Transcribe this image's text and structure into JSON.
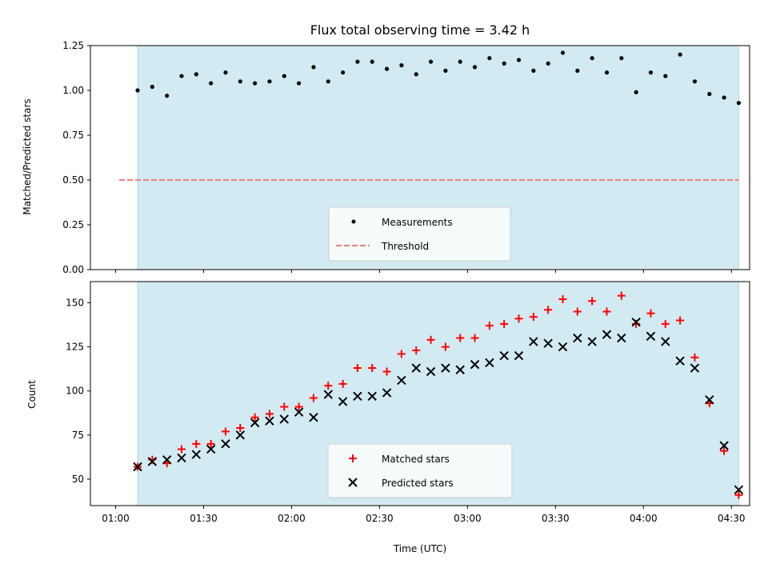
{
  "chart_data": [
    {
      "type": "scatter",
      "title": "Flux total observing time = 3.42 h",
      "ylabel": "Matched/Predicted stars",
      "xlabel": "",
      "ylim": [
        0,
        1.25
      ],
      "yticks": [
        "0.00",
        "0.25",
        "0.50",
        "0.75",
        "1.00",
        "1.25"
      ],
      "shaded_span_minutes": [
        67.5,
        272.5
      ],
      "shade_color": "#add8e6",
      "legend_position": "lower center",
      "threshold": {
        "name": "Threshold",
        "value": 0.5,
        "color": "#f08080",
        "style": "dashed"
      },
      "series": [
        {
          "name": "Measurements",
          "marker": "dot",
          "color": "#000000",
          "x": [
            "01:07:30",
            "01:12:30",
            "01:17:30",
            "01:22:30",
            "01:27:30",
            "01:32:30",
            "01:37:30",
            "01:42:30",
            "01:47:30",
            "01:52:30",
            "01:57:30",
            "02:02:30",
            "02:07:30",
            "02:12:30",
            "02:17:30",
            "02:22:30",
            "02:27:30",
            "02:32:30",
            "02:37:30",
            "02:42:30",
            "02:47:30",
            "02:52:30",
            "02:57:30",
            "03:02:30",
            "03:07:30",
            "03:12:30",
            "03:17:30",
            "03:22:30",
            "03:27:30",
            "03:32:30",
            "03:37:30",
            "03:42:30",
            "03:47:30",
            "03:52:30",
            "03:57:30",
            "04:02:30",
            "04:07:30",
            "04:12:30",
            "04:17:30",
            "04:22:30",
            "04:27:30",
            "04:32:30"
          ],
          "y": [
            1.0,
            1.02,
            0.97,
            1.08,
            1.09,
            1.04,
            1.1,
            1.05,
            1.04,
            1.05,
            1.08,
            1.04,
            1.13,
            1.05,
            1.1,
            1.16,
            1.16,
            1.12,
            1.14,
            1.09,
            1.16,
            1.11,
            1.16,
            1.13,
            1.18,
            1.15,
            1.17,
            1.11,
            1.15,
            1.21,
            1.11,
            1.18,
            1.1,
            1.18,
            0.99,
            1.1,
            1.08,
            1.2,
            1.05,
            0.98,
            0.96,
            0.93
          ]
        }
      ]
    },
    {
      "type": "scatter",
      "title": "",
      "ylabel": "Count",
      "xlabel": "Time (UTC)",
      "ylim": [
        35,
        162
      ],
      "yticks": [
        "50",
        "75",
        "100",
        "125",
        "150"
      ],
      "xticks": [
        "01:00",
        "01:30",
        "02:00",
        "02:30",
        "03:00",
        "03:30",
        "04:00",
        "04:30"
      ],
      "shaded_span_minutes": [
        67.5,
        272.5
      ],
      "shade_color": "#add8e6",
      "legend_position": "lower center",
      "series": [
        {
          "name": "Matched stars",
          "marker": "plus",
          "color": "#ff0000",
          "x": [
            "01:07:30",
            "01:12:30",
            "01:17:30",
            "01:22:30",
            "01:27:30",
            "01:32:30",
            "01:37:30",
            "01:42:30",
            "01:47:30",
            "01:52:30",
            "01:57:30",
            "02:02:30",
            "02:07:30",
            "02:12:30",
            "02:17:30",
            "02:22:30",
            "02:27:30",
            "02:32:30",
            "02:37:30",
            "02:42:30",
            "02:47:30",
            "02:52:30",
            "02:57:30",
            "03:02:30",
            "03:07:30",
            "03:12:30",
            "03:17:30",
            "03:22:30",
            "03:27:30",
            "03:32:30",
            "03:37:30",
            "03:42:30",
            "03:47:30",
            "03:52:30",
            "03:57:30",
            "04:02:30",
            "04:07:30",
            "04:12:30",
            "04:17:30",
            "04:22:30",
            "04:27:30",
            "04:32:30"
          ],
          "y": [
            57,
            61,
            59,
            67,
            70,
            70,
            77,
            79,
            85,
            87,
            91,
            91,
            96,
            103,
            104,
            113,
            113,
            111,
            121,
            123,
            129,
            125,
            130,
            130,
            137,
            138,
            141,
            142,
            146,
            152,
            145,
            151,
            145,
            154,
            138,
            144,
            138,
            140,
            119,
            93,
            66,
            41
          ]
        },
        {
          "name": "Predicted stars",
          "marker": "x",
          "color": "#000000",
          "x": [
            "01:07:30",
            "01:12:30",
            "01:17:30",
            "01:22:30",
            "01:27:30",
            "01:32:30",
            "01:37:30",
            "01:42:30",
            "01:47:30",
            "01:52:30",
            "01:57:30",
            "02:02:30",
            "02:07:30",
            "02:12:30",
            "02:17:30",
            "02:22:30",
            "02:27:30",
            "02:32:30",
            "02:37:30",
            "02:42:30",
            "02:47:30",
            "02:52:30",
            "02:57:30",
            "03:02:30",
            "03:07:30",
            "03:12:30",
            "03:17:30",
            "03:22:30",
            "03:27:30",
            "03:32:30",
            "03:37:30",
            "03:42:30",
            "03:47:30",
            "03:52:30",
            "03:57:30",
            "04:02:30",
            "04:07:30",
            "04:12:30",
            "04:17:30",
            "04:22:30",
            "04:27:30",
            "04:32:30"
          ],
          "y": [
            57,
            60,
            61,
            62,
            64,
            67,
            70,
            75,
            82,
            83,
            84,
            88,
            85,
            98,
            94,
            97,
            97,
            99,
            106,
            113,
            111,
            113,
            112,
            115,
            116,
            120,
            120,
            128,
            127,
            125,
            130,
            128,
            132,
            130,
            139,
            131,
            128,
            117,
            113,
            95,
            69,
            44
          ]
        }
      ]
    }
  ]
}
